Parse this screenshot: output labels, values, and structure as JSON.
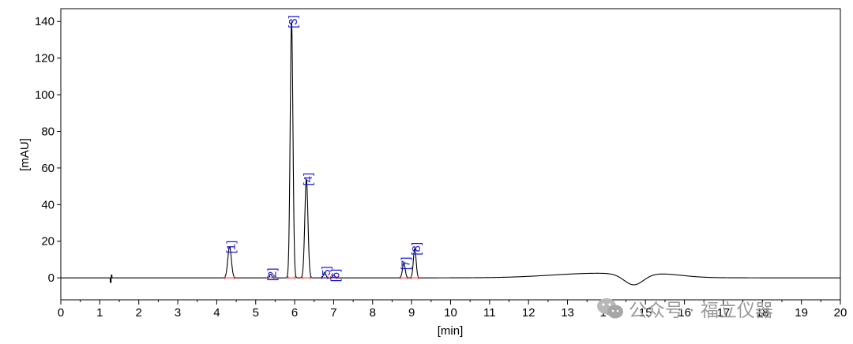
{
  "chart_data": {
    "type": "line",
    "xlabel": "[min]",
    "ylabel": "[mAU]",
    "xlim": [
      0,
      20
    ],
    "ylim": [
      -12,
      147
    ],
    "x_ticks": [
      0,
      1,
      2,
      3,
      4,
      5,
      6,
      7,
      8,
      9,
      10,
      11,
      12,
      13,
      14,
      15,
      16,
      17,
      18,
      19,
      20
    ],
    "y_ticks": [
      0,
      20,
      40,
      60,
      80,
      100,
      120,
      140
    ],
    "grid": false,
    "peaks": [
      {
        "label": "[1]",
        "rt": 4.33,
        "height": 17,
        "width": 0.045
      },
      {
        "label": "[2]",
        "rt": 5.38,
        "height": 2,
        "width": 0.03
      },
      {
        "label": "[3]",
        "rt": 5.92,
        "height": 140,
        "width": 0.035
      },
      {
        "label": "[4]",
        "rt": 6.3,
        "height": 54,
        "width": 0.04
      },
      {
        "label": "[5]",
        "rt": 6.77,
        "height": 3,
        "width": 0.03
      },
      {
        "label": "[6]",
        "rt": 7.0,
        "height": 1.5,
        "width": 0.03
      },
      {
        "label": "[7]",
        "rt": 8.8,
        "height": 8,
        "width": 0.035
      },
      {
        "label": "[8]",
        "rt": 9.08,
        "height": 16,
        "width": 0.035
      }
    ],
    "baseline_features": [
      {
        "type": "spike",
        "x": 1.28,
        "low": -2.5,
        "high": 1.5
      },
      {
        "type": "bump",
        "x": 13.8,
        "height": 2.5,
        "width": 1.2
      },
      {
        "type": "dip",
        "x": 14.7,
        "depth": -6,
        "width": 0.25
      },
      {
        "type": "bump",
        "x": 15.5,
        "height": 1.2,
        "width": 0.5
      }
    ]
  },
  "watermark": {
    "text": "公众号 · 福立仪器",
    "icon": "wechat-icon"
  },
  "colors": {
    "trace": "#000000",
    "peak_label": "#1a1ad6",
    "integration_marker": "#e03030"
  }
}
